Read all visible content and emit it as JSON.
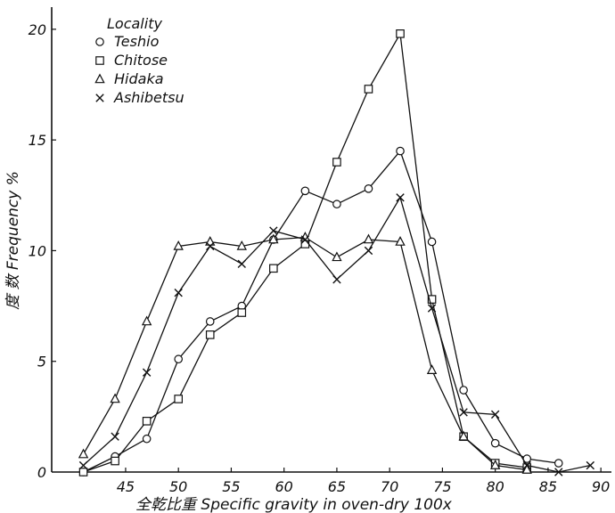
{
  "chart_data": {
    "type": "line",
    "xlabel": "全乾比重 Specific gravity in oven-dry 100x",
    "ylabel": "度 数 Frequency %",
    "xlim": [
      38,
      91
    ],
    "ylim": [
      0,
      21
    ],
    "x_ticks": [
      45,
      50,
      55,
      60,
      65,
      70,
      75,
      80,
      85,
      90
    ],
    "y_ticks": [
      5,
      10,
      15,
      20
    ],
    "y_origin_label": "0",
    "legend_title": "Locality",
    "legend_position": "top-left",
    "grid": false,
    "series": [
      {
        "name": "Teshio",
        "marker": "circle",
        "x": [
          41,
          44,
          47,
          50,
          53,
          56,
          59,
          62,
          65,
          68,
          71,
          74,
          77,
          80,
          83,
          86
        ],
        "y": [
          0,
          0.7,
          1.5,
          5.1,
          6.8,
          7.5,
          10.5,
          12.7,
          12.1,
          12.8,
          14.5,
          10.4,
          3.7,
          1.3,
          0.6,
          0.4
        ]
      },
      {
        "name": "Chitose",
        "marker": "square",
        "x": [
          41,
          44,
          47,
          50,
          53,
          56,
          59,
          62,
          65,
          68,
          71,
          74,
          77,
          80,
          83
        ],
        "y": [
          0,
          0.5,
          2.3,
          3.3,
          6.2,
          7.2,
          9.2,
          10.3,
          14.0,
          17.3,
          19.8,
          7.8,
          1.6,
          0.4,
          0.2
        ]
      },
      {
        "name": "Hidaka",
        "marker": "triangle",
        "x": [
          41,
          44,
          47,
          50,
          53,
          56,
          59,
          62,
          65,
          68,
          71,
          74,
          77,
          80,
          83
        ],
        "y": [
          0.8,
          3.3,
          6.8,
          10.2,
          10.4,
          10.2,
          10.5,
          10.6,
          9.7,
          10.5,
          10.4,
          4.6,
          1.6,
          0.3,
          0.1
        ]
      },
      {
        "name": "Ashibetsu",
        "marker": "x",
        "x": [
          41,
          44,
          47,
          50,
          53,
          56,
          59,
          62,
          65,
          68,
          71,
          74,
          77,
          80,
          83,
          86,
          89
        ],
        "y": [
          0.3,
          1.6,
          4.5,
          8.1,
          10.2,
          9.4,
          10.9,
          10.5,
          8.7,
          10.0,
          12.4,
          7.4,
          2.7,
          2.6,
          0.3,
          0,
          0.3
        ]
      }
    ]
  }
}
